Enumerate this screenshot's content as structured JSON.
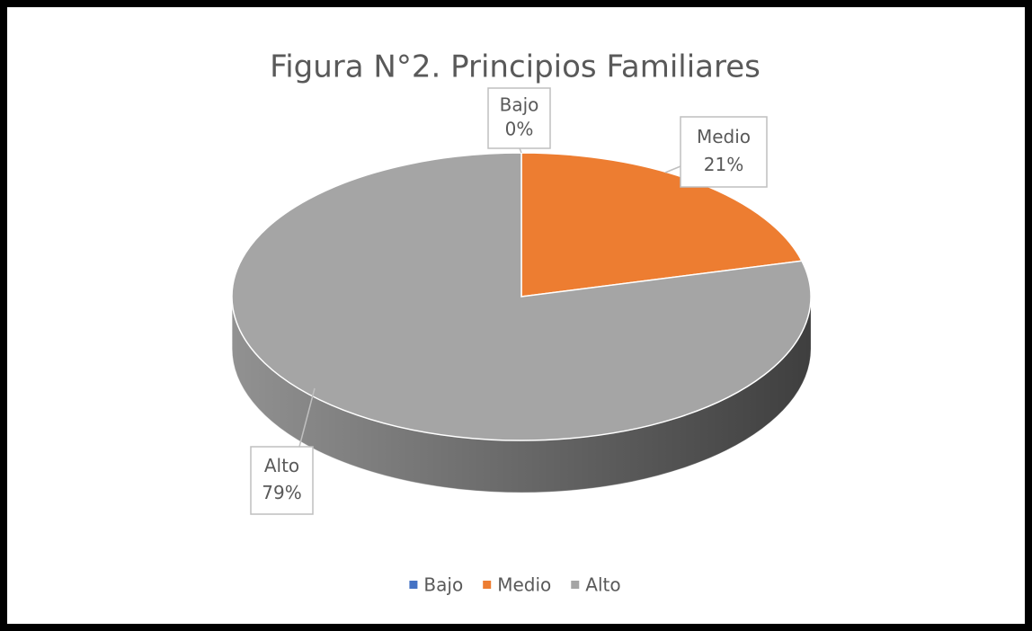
{
  "chart_data": {
    "type": "pie",
    "title": "Figura N°2. Principios Familiares",
    "categories": [
      "Bajo",
      "Medio",
      "Alto"
    ],
    "values": [
      0,
      21,
      79
    ],
    "value_labels": [
      "0%",
      "21%",
      "79%"
    ],
    "colors": [
      "#4472c4",
      "#ed7d31",
      "#a5a5a5"
    ],
    "legend": "bottom"
  }
}
